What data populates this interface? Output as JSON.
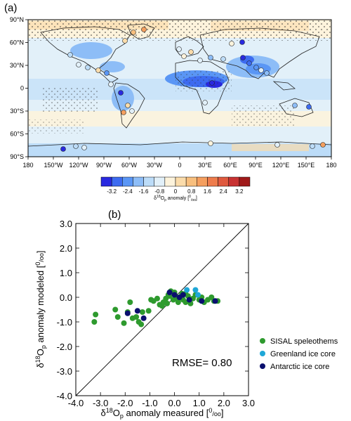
{
  "chart_data": [
    {
      "type": "heatmap",
      "panel_label": "(a)",
      "y_ticks": [
        "90°N",
        "60°N",
        "30°N",
        "0",
        "30°S",
        "60°S",
        "90°S"
      ],
      "x_ticks": [
        "180",
        "150°W",
        "120°W",
        "90°W",
        "60°W",
        "30°W",
        "0",
        "30°E",
        "60°E",
        "90°E",
        "120°E",
        "150°E",
        "180"
      ],
      "colorbar": {
        "ticks": [
          "-3.2",
          "-2.4",
          "-1.6",
          "-0.8",
          "0",
          "0.8",
          "1.6",
          "2.4",
          "3.2"
        ],
        "colors": [
          "#2929e0",
          "#3d6bf0",
          "#5a96f5",
          "#8dbdf7",
          "#bcdcf8",
          "#e2f0f9",
          "#fdf3dc",
          "#fbdcab",
          "#f8bf7e",
          "#f59f5f",
          "#ee7c4c",
          "#e05a3f",
          "#c83232",
          "#a01a1a"
        ],
        "label_prefix": "δ",
        "label_sup": "18",
        "label_sym": "O",
        "label_sub": "p",
        "label_rest": " anomaly [",
        "label_sup2": "0",
        "label_sub2": "/oo",
        "label_end": "]"
      }
    },
    {
      "type": "scatter",
      "panel_label": "(b)",
      "xlim": [
        -4.0,
        3.0
      ],
      "ylim": [
        -4.0,
        3.0
      ],
      "ticks": [
        "-4.0",
        "-3.0",
        "-2.0",
        "-1.0",
        "0.0",
        "1.0",
        "2.0",
        "3.0"
      ],
      "xlabel": {
        "d": "δ",
        "sup": "18",
        "sym": "O",
        "sub": "p",
        "rest": " anomaly measured [",
        "sup2": "0",
        "sub2": "/oo",
        "end": "]"
      },
      "ylabel": {
        "d": "δ",
        "sup": "18",
        "sym": "O",
        "sub": "p",
        "rest": " anomaly  modeled [",
        "sup2": "0",
        "sub2": "/oo",
        "end": "]"
      },
      "annotation": "RMSE= 0.80",
      "series": [
        {
          "name": "SISAL speleothems",
          "color": "#2e9a2e",
          "points": [
            [
              -3.2,
              -0.7
            ],
            [
              -3.25,
              -1.0
            ],
            [
              -2.4,
              -0.5
            ],
            [
              -2.3,
              -0.8
            ],
            [
              -2.05,
              -1.05
            ],
            [
              -1.9,
              -0.6
            ],
            [
              -1.8,
              -0.2
            ],
            [
              -1.7,
              -0.85
            ],
            [
              -1.55,
              -0.8
            ],
            [
              -1.45,
              -1.0
            ],
            [
              -1.35,
              -1.1
            ],
            [
              -1.3,
              -0.6
            ],
            [
              -1.05,
              -0.55
            ],
            [
              -0.95,
              -0.1
            ],
            [
              -0.85,
              -0.15
            ],
            [
              -0.7,
              -0.05
            ],
            [
              -0.6,
              -0.3
            ],
            [
              -0.5,
              -0.35
            ],
            [
              -0.45,
              -0.2
            ],
            [
              -0.35,
              -0.05
            ],
            [
              -0.3,
              -0.25
            ],
            [
              -0.2,
              0.05
            ],
            [
              -0.15,
              0.25
            ],
            [
              -0.05,
              -0.1
            ],
            [
              0.05,
              0.05
            ],
            [
              0.1,
              -0.05
            ],
            [
              0.15,
              -0.2
            ],
            [
              0.25,
              0.0
            ],
            [
              0.3,
              0.15
            ],
            [
              0.35,
              -0.1
            ],
            [
              0.45,
              -0.2
            ],
            [
              0.55,
              0.05
            ],
            [
              0.65,
              -0.25
            ],
            [
              0.75,
              -0.05
            ],
            [
              0.85,
              0.1
            ],
            [
              1.0,
              -0.1
            ],
            [
              1.1,
              0.0
            ],
            [
              1.2,
              -0.2
            ],
            [
              1.35,
              -0.1
            ],
            [
              1.5,
              0.0
            ],
            [
              1.6,
              -0.15
            ],
            [
              1.75,
              -0.15
            ],
            [
              -0.25,
              0.1
            ],
            [
              0.0,
              0.2
            ],
            [
              0.45,
              0.15
            ]
          ]
        },
        {
          "name": "Greenland ice core",
          "color": "#1ea7d7",
          "points": [
            [
              0.5,
              0.3
            ],
            [
              0.85,
              0.3
            ],
            [
              0.95,
              0.1
            ]
          ]
        },
        {
          "name": "Antarctic ice core",
          "color": "#0a0f6e",
          "points": [
            [
              -1.9,
              -0.65
            ],
            [
              -1.5,
              -0.55
            ],
            [
              -1.25,
              -0.85
            ],
            [
              -0.2,
              0.2
            ],
            [
              0.0,
              0.1
            ],
            [
              0.2,
              0.0
            ],
            [
              0.35,
              0.1
            ],
            [
              0.6,
              -0.1
            ],
            [
              1.1,
              -0.15
            ],
            [
              1.65,
              -0.15
            ]
          ]
        }
      ]
    }
  ]
}
